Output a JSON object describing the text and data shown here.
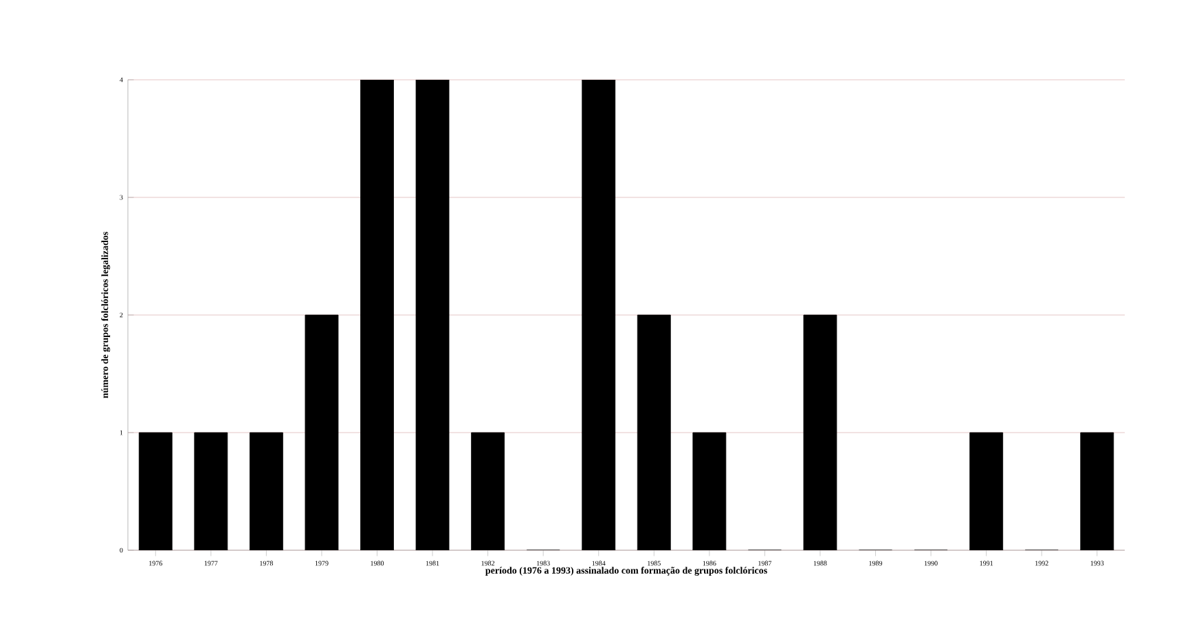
{
  "chart_data": {
    "type": "bar",
    "xlabel": "período (1976 a 1993) assinalado com formação de grupos folclóricos",
    "ylabel": "número de grupos folclóricos legalizados",
    "categories": [
      "1976",
      "1977",
      "1978",
      "1979",
      "1980",
      "1981",
      "1982",
      "1983",
      "1984",
      "1985",
      "1986",
      "1987",
      "1988",
      "1989",
      "1990",
      "1991",
      "1992",
      "1993"
    ],
    "values": [
      1,
      1,
      1,
      2,
      4,
      4,
      1,
      0,
      4,
      2,
      1,
      0,
      2,
      0,
      0,
      1,
      0,
      1
    ],
    "color": "#000000",
    "ylim": [
      0,
      4
    ],
    "yticks": [
      0,
      1,
      2,
      3,
      4
    ],
    "grid": "y"
  }
}
